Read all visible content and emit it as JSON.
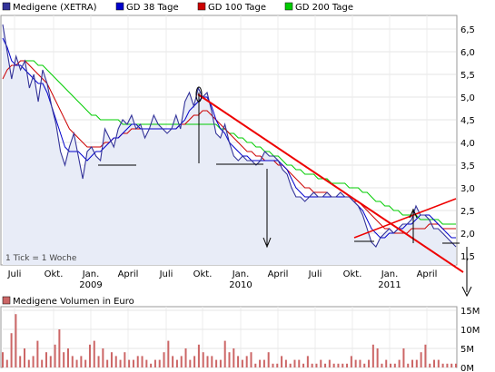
{
  "legend": [
    {
      "label": "Medigene (XETRA)",
      "color": "#333399"
    },
    {
      "label": "GD 38 Tage",
      "color": "#0000cc"
    },
    {
      "label": "GD 100 Tage",
      "color": "#cc0000"
    },
    {
      "label": "GD 200 Tage",
      "color": "#00cc00"
    }
  ],
  "tick_note": "1 Tick = 1 Woche",
  "volume_legend": {
    "label": "Medigene Volumen in Euro",
    "color": "#cc6666"
  },
  "x_ticks": [
    "Juli",
    "Okt.",
    "Jan.",
    "April",
    "Juli",
    "Okt.",
    "Jan.",
    "April",
    "Juli",
    "Okt.",
    "Jan.",
    "April"
  ],
  "year_labels": [
    "2009",
    "2010",
    "2011"
  ],
  "y_ticks": [
    "6,5",
    "6,0",
    "5,5",
    "5,0",
    "4,5",
    "4,0",
    "3,5",
    "3,0",
    "2,5",
    "2,0",
    "1,5"
  ],
  "vol_ticks": [
    "15M",
    "10M",
    "5M",
    "0M"
  ],
  "chart_data": {
    "type": "line",
    "x_start": "2008-06",
    "x_end": "2011-06",
    "ylim": [
      1.3,
      6.8
    ],
    "series": [
      {
        "name": "Medigene (XETRA)",
        "values": [
          6.6,
          6.0,
          5.4,
          5.9,
          5.6,
          5.8,
          5.2,
          5.5,
          4.9,
          5.6,
          5.3,
          4.8,
          4.4,
          3.8,
          3.5,
          3.9,
          4.2,
          3.7,
          3.2,
          3.8,
          3.9,
          3.7,
          3.6,
          4.3,
          4.1,
          3.9,
          4.3,
          4.5,
          4.4,
          4.6,
          4.3,
          4.4,
          4.1,
          4.3,
          4.6,
          4.4,
          4.3,
          4.2,
          4.3,
          4.6,
          4.3,
          4.9,
          5.1,
          4.8,
          5.2,
          5.0,
          5.1,
          4.7,
          4.2,
          4.1,
          4.4,
          4.0,
          3.7,
          3.6,
          3.7,
          3.6,
          3.6,
          3.5,
          3.6,
          3.8,
          3.7,
          3.7,
          3.6,
          3.4,
          3.3,
          3.0,
          2.8,
          2.8,
          2.7,
          2.8,
          2.9,
          2.8,
          2.8,
          2.9,
          2.8,
          2.8,
          2.9,
          2.8,
          2.8,
          2.7,
          2.6,
          2.4,
          2.1,
          1.8,
          1.7,
          1.9,
          2.0,
          2.1,
          2.0,
          2.1,
          2.2,
          2.2,
          2.3,
          2.6,
          2.4,
          2.4,
          2.3,
          2.1,
          2.1,
          2.0,
          1.9,
          1.8,
          1.7
        ]
      },
      {
        "name": "GD 38 Tage",
        "values": [
          6.3,
          6.1,
          5.8,
          5.7,
          5.7,
          5.6,
          5.5,
          5.4,
          5.3,
          5.3,
          5.1,
          4.8,
          4.5,
          4.2,
          3.9,
          3.8,
          3.8,
          3.8,
          3.7,
          3.6,
          3.7,
          3.8,
          3.8,
          3.9,
          4.0,
          4.1,
          4.1,
          4.2,
          4.3,
          4.4,
          4.4,
          4.3,
          4.3,
          4.3,
          4.3,
          4.3,
          4.3,
          4.3,
          4.3,
          4.3,
          4.4,
          4.5,
          4.7,
          4.8,
          4.9,
          5.0,
          5.0,
          4.8,
          4.5,
          4.3,
          4.2,
          4.0,
          3.9,
          3.8,
          3.7,
          3.7,
          3.6,
          3.6,
          3.6,
          3.6,
          3.6,
          3.6,
          3.6,
          3.5,
          3.4,
          3.2,
          3.0,
          2.9,
          2.8,
          2.8,
          2.8,
          2.8,
          2.8,
          2.8,
          2.8,
          2.8,
          2.8,
          2.8,
          2.8,
          2.7,
          2.6,
          2.5,
          2.3,
          2.1,
          2.0,
          1.9,
          1.9,
          2.0,
          2.0,
          2.1,
          2.1,
          2.2,
          2.2,
          2.3,
          2.4,
          2.4,
          2.4,
          2.3,
          2.2,
          2.1,
          2.0,
          1.9,
          1.9
        ]
      },
      {
        "name": "GD 100 Tage",
        "values": [
          5.4,
          5.6,
          5.7,
          5.7,
          5.8,
          5.8,
          5.7,
          5.6,
          5.5,
          5.4,
          5.3,
          5.1,
          4.9,
          4.7,
          4.5,
          4.3,
          4.2,
          4.1,
          4.0,
          3.9,
          3.9,
          3.9,
          3.9,
          4.0,
          4.0,
          4.1,
          4.1,
          4.2,
          4.2,
          4.3,
          4.3,
          4.3,
          4.3,
          4.3,
          4.3,
          4.3,
          4.3,
          4.3,
          4.3,
          4.3,
          4.4,
          4.4,
          4.5,
          4.6,
          4.6,
          4.7,
          4.7,
          4.6,
          4.5,
          4.4,
          4.3,
          4.2,
          4.1,
          4.0,
          3.9,
          3.8,
          3.8,
          3.7,
          3.7,
          3.6,
          3.6,
          3.6,
          3.5,
          3.5,
          3.4,
          3.3,
          3.2,
          3.1,
          3.0,
          3.0,
          2.9,
          2.9,
          2.9,
          2.9,
          2.8,
          2.8,
          2.8,
          2.8,
          2.8,
          2.7,
          2.7,
          2.6,
          2.5,
          2.4,
          2.3,
          2.2,
          2.1,
          2.1,
          2.0,
          2.0,
          2.0,
          2.0,
          2.1,
          2.1,
          2.1,
          2.1,
          2.2,
          2.2,
          2.2,
          2.1,
          2.1,
          2.1,
          2.1
        ]
      },
      {
        "name": "GD 200 Tage",
        "values": [
          null,
          null,
          null,
          null,
          null,
          5.8,
          5.8,
          5.8,
          5.7,
          5.7,
          5.6,
          5.5,
          5.4,
          5.3,
          5.2,
          5.1,
          5.0,
          4.9,
          4.8,
          4.7,
          4.6,
          4.6,
          4.5,
          4.5,
          4.5,
          4.5,
          4.5,
          4.4,
          4.4,
          4.4,
          4.4,
          4.4,
          4.4,
          4.4,
          4.4,
          4.4,
          4.4,
          4.4,
          4.4,
          4.4,
          4.4,
          4.4,
          4.4,
          4.4,
          4.4,
          4.4,
          4.4,
          4.4,
          4.4,
          4.3,
          4.3,
          4.2,
          4.2,
          4.1,
          4.1,
          4.0,
          4.0,
          3.9,
          3.9,
          3.8,
          3.8,
          3.7,
          3.7,
          3.6,
          3.5,
          3.5,
          3.4,
          3.4,
          3.3,
          3.3,
          3.3,
          3.2,
          3.2,
          3.2,
          3.1,
          3.1,
          3.1,
          3.1,
          3.0,
          3.0,
          3.0,
          2.9,
          2.9,
          2.8,
          2.7,
          2.7,
          2.6,
          2.6,
          2.5,
          2.5,
          2.4,
          2.4,
          2.4,
          2.4,
          2.3,
          2.3,
          2.3,
          2.3,
          2.3,
          2.2,
          2.2,
          2.2,
          2.2
        ]
      }
    ],
    "volume": {
      "name": "Medigene Volumen in Euro",
      "ylim": [
        0,
        15
      ],
      "values": [
        4,
        2,
        9,
        14,
        3,
        5,
        2,
        3,
        7,
        2,
        4,
        3,
        6,
        10,
        4,
        5,
        3,
        2,
        3,
        2,
        6,
        7,
        3,
        5,
        2,
        4,
        3,
        2,
        4,
        2,
        2,
        3,
        3,
        2,
        1,
        2,
        2,
        4,
        7,
        3,
        2,
        3,
        5,
        2,
        3,
        6,
        4,
        3,
        3,
        2,
        2,
        7,
        4,
        5,
        3,
        2,
        3,
        4,
        1,
        2,
        2,
        4,
        1,
        1,
        3,
        2,
        1,
        2,
        2,
        1,
        3,
        1,
        1,
        2,
        1,
        2,
        1,
        1,
        1,
        1,
        3,
        2,
        2,
        1,
        2,
        6,
        5,
        1,
        2,
        1,
        1,
        2,
        5,
        1,
        2,
        2,
        4,
        6,
        1,
        2,
        2,
        1,
        1,
        1,
        1
      ]
    },
    "annotations": "Drawn trend lines, support lines and arrows"
  }
}
